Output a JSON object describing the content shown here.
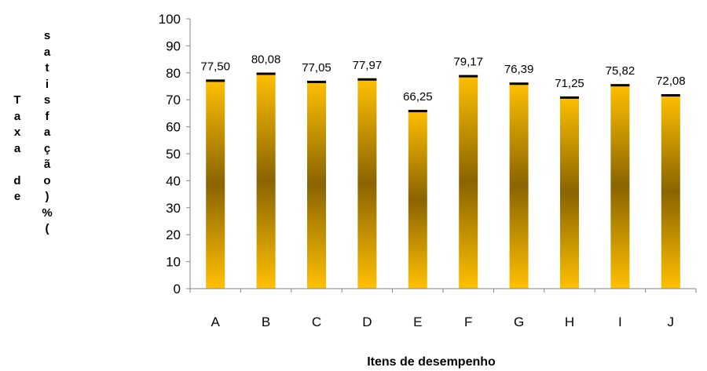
{
  "chart_data": {
    "type": "bar",
    "title": "",
    "xlabel": "Itens de desempenho",
    "ylabel": "Taxa de satisfação (%)",
    "ylabel_col1": "T\na\nx\na\n\nd\ne",
    "ylabel_col2": "s\na\nt\ni\ns\nf\na\nç\nã\no\n)\n%\n(",
    "categories": [
      "A",
      "B",
      "C",
      "D",
      "E",
      "F",
      "G",
      "H",
      "I",
      "J"
    ],
    "values": [
      77.5,
      80.08,
      77.05,
      77.97,
      66.25,
      79.17,
      76.39,
      71.25,
      75.82,
      72.08
    ],
    "value_labels": [
      "77,50",
      "80,08",
      "77,05",
      "77,97",
      "66,25",
      "79,17",
      "76,39",
      "71,25",
      "75,82",
      "72,08"
    ],
    "ylim": [
      0,
      100
    ],
    "yticks": [
      "0",
      "10",
      "20",
      "30",
      "40",
      "50",
      "60",
      "70",
      "80",
      "90",
      "100"
    ],
    "grid": false,
    "legend": "none",
    "colors": {
      "bar_light": "#FFC000",
      "bar_dark": "#8A6400",
      "bar_cap": "#000000",
      "axis": "#868686",
      "text": "#000000"
    }
  }
}
